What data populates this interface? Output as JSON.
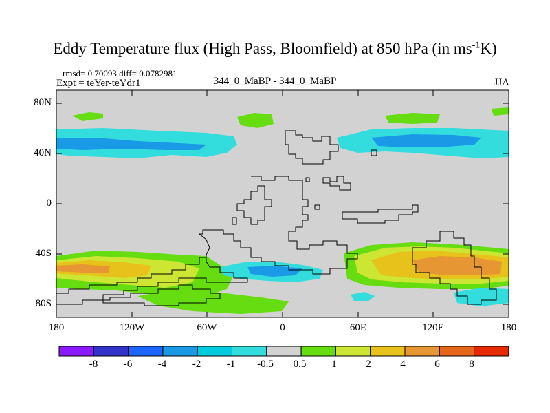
{
  "figure": {
    "title_main": "Eddy Temperature flux (High Pass, Bloomfield) at 850 hPa (in ms",
    "title_sup": "-1",
    "title_end": "K)",
    "stats": "rmsd= 0.70093 diff= 0.0782981",
    "expt": "Expt = teYer-teYdr1",
    "center_label": "344_0_MaBP - 344_0_MaBP",
    "season": "JJA"
  },
  "axes": {
    "lat_ticks": [
      "80N",
      "40N",
      "0",
      "40S",
      "80S"
    ],
    "lon_ticks": [
      "180",
      "120W",
      "60W",
      "0",
      "60E",
      "120E",
      "180"
    ]
  },
  "colorbar": {
    "labels": [
      "-8",
      "-6",
      "-4",
      "-2",
      "-1",
      "-0.5",
      "0.5",
      "1",
      "2",
      "4",
      "6",
      "8"
    ],
    "colors": [
      "#8a1aff",
      "#3333cc",
      "#1a66ff",
      "#1a99e6",
      "#00ccdd",
      "#33dddd",
      "#d2d2d2",
      "#66dd11",
      "#cce633",
      "#e6c21a",
      "#e69633",
      "#e6661a",
      "#e62a00"
    ]
  },
  "colors": {
    "neutral": "#d2d2d2",
    "blue_dark": "#1a99e6",
    "cyan": "#00ccdd",
    "cyan_light": "#33dddd",
    "green": "#66dd11",
    "yellow_green": "#cce633",
    "gold": "#e6c21a",
    "orange": "#e69633"
  }
}
